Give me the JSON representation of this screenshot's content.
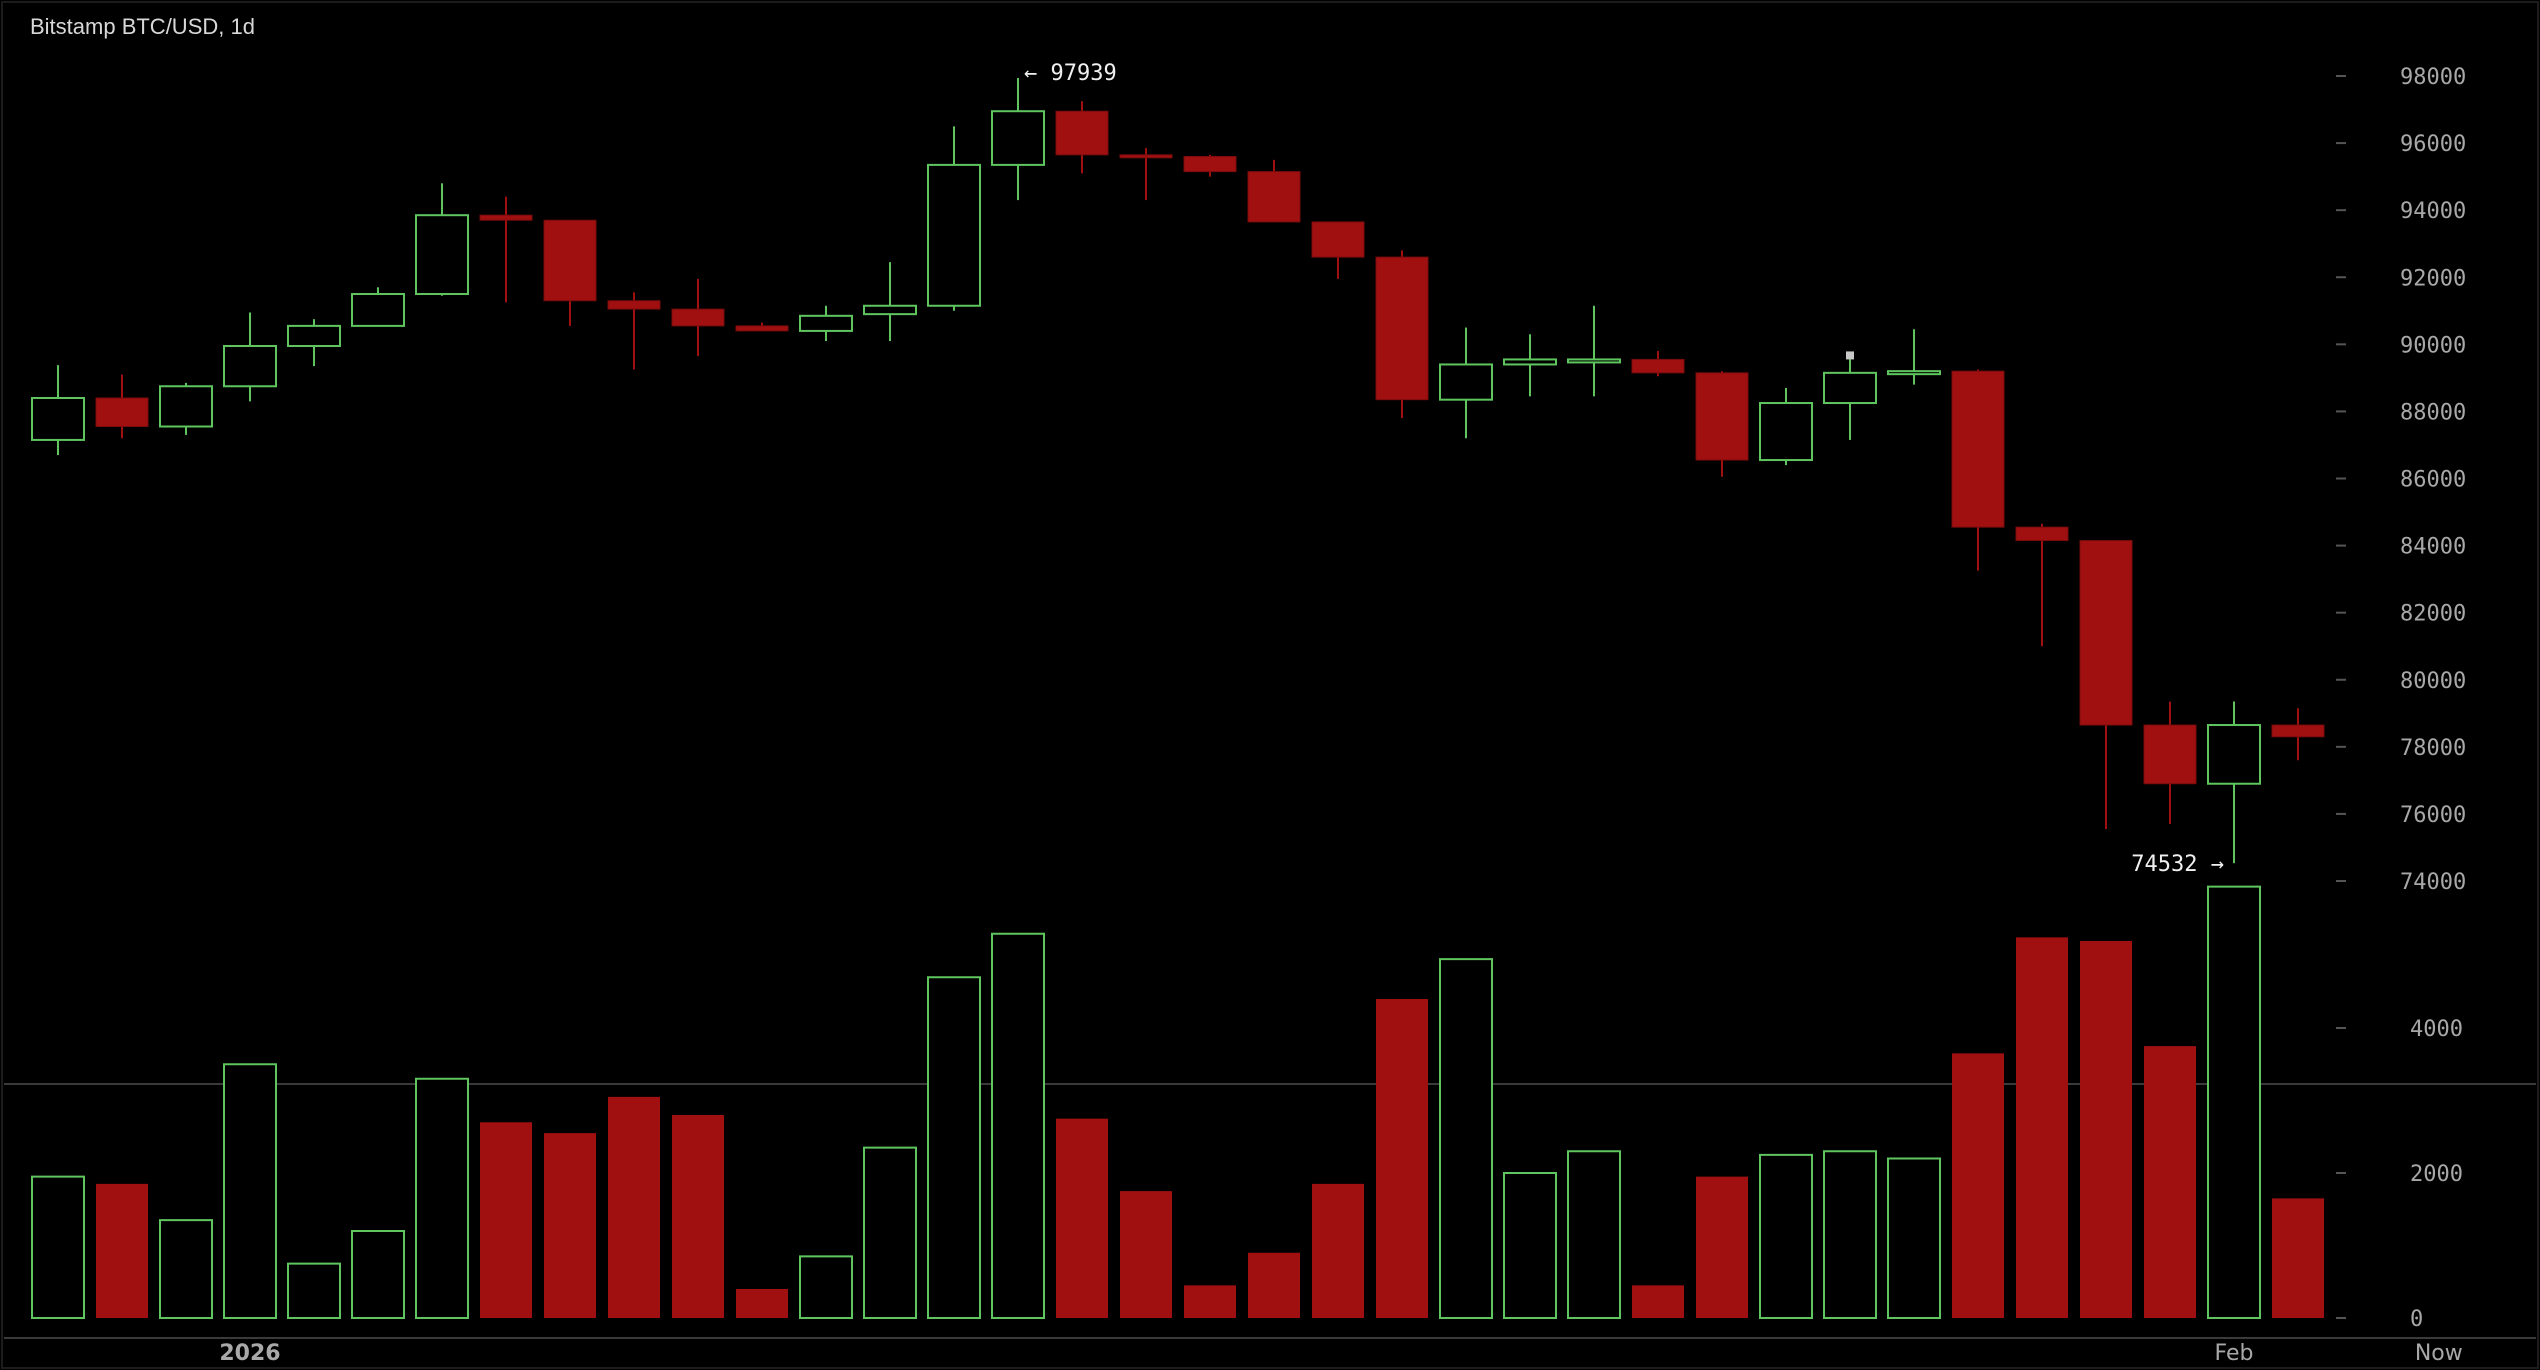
{
  "chart_data": {
    "type": "candlestick",
    "title": "Bitstamp BTC/USD, 1d",
    "colors": {
      "up": "#5fc65f",
      "down": "#a01010",
      "background": "#000000",
      "grid_tick": "#555555",
      "text": "#a8a8a8"
    },
    "price_axis": {
      "ticks": [
        "98000",
        "96000",
        "94000",
        "92000",
        "90000",
        "88000",
        "86000",
        "84000",
        "82000",
        "80000",
        "78000",
        "76000",
        "74000"
      ],
      "range": [
        73000,
        99000
      ]
    },
    "volume_axis": {
      "ticks": [
        "4000",
        "2000",
        "0"
      ],
      "range": [
        0,
        6000
      ]
    },
    "x_labels": [
      {
        "label": "2026",
        "index": 3
      },
      {
        "label": "Feb",
        "index": 34
      },
      {
        "label": "Now",
        "index": 37.2
      }
    ],
    "annotations": [
      {
        "text": "← 97939",
        "index": 15,
        "value": 97939,
        "side": "right"
      },
      {
        "text": "74532 →",
        "index": 34,
        "value": 74532,
        "side": "left"
      }
    ],
    "candles": [
      {
        "o": 87150,
        "h": 89380,
        "l": 86700,
        "c": 88400,
        "v": 1950
      },
      {
        "o": 88400,
        "h": 89100,
        "l": 87200,
        "c": 87550,
        "v": 1850
      },
      {
        "o": 87550,
        "h": 88850,
        "l": 87300,
        "c": 88750,
        "v": 1350
      },
      {
        "o": 88750,
        "h": 90950,
        "l": 88300,
        "c": 89950,
        "v": 3500
      },
      {
        "o": 89950,
        "h": 90750,
        "l": 89350,
        "c": 90550,
        "v": 750
      },
      {
        "o": 90550,
        "h": 91700,
        "l": 90550,
        "c": 91500,
        "v": 1200
      },
      {
        "o": 91500,
        "h": 94800,
        "l": 91450,
        "c": 93850,
        "v": 3300
      },
      {
        "o": 93850,
        "h": 94400,
        "l": 91250,
        "c": 93700,
        "v": 2700
      },
      {
        "o": 93700,
        "h": 93700,
        "l": 90550,
        "c": 91300,
        "v": 2550
      },
      {
        "o": 91300,
        "h": 91550,
        "l": 89250,
        "c": 91050,
        "v": 3050
      },
      {
        "o": 91050,
        "h": 91950,
        "l": 89650,
        "c": 90550,
        "v": 2800
      },
      {
        "o": 90550,
        "h": 90650,
        "l": 90400,
        "c": 90400,
        "v": 400
      },
      {
        "o": 90400,
        "h": 91150,
        "l": 90100,
        "c": 90850,
        "v": 850
      },
      {
        "o": 90900,
        "h": 92450,
        "l": 90100,
        "c": 91150,
        "v": 2350
      },
      {
        "o": 91150,
        "h": 96500,
        "l": 91000,
        "c": 95350,
        "v": 4700
      },
      {
        "o": 95350,
        "h": 97939,
        "l": 94300,
        "c": 96950,
        "v": 5300
      },
      {
        "o": 96950,
        "h": 97250,
        "l": 95100,
        "c": 95650,
        "v": 2750
      },
      {
        "o": 95650,
        "h": 95850,
        "l": 94300,
        "c": 95600,
        "v": 1750
      },
      {
        "o": 95600,
        "h": 95650,
        "l": 95000,
        "c": 95150,
        "v": 450
      },
      {
        "o": 95150,
        "h": 95500,
        "l": 93650,
        "c": 93650,
        "v": 900
      },
      {
        "o": 93650,
        "h": 93650,
        "l": 91950,
        "c": 92600,
        "v": 1850
      },
      {
        "o": 92600,
        "h": 92800,
        "l": 87800,
        "c": 88350,
        "v": 4400
      },
      {
        "o": 88350,
        "h": 90500,
        "l": 87200,
        "c": 89400,
        "v": 4950
      },
      {
        "o": 89400,
        "h": 90300,
        "l": 88450,
        "c": 89550,
        "v": 2000
      },
      {
        "o": 89500,
        "h": 91150,
        "l": 88450,
        "c": 89550,
        "v": 2300
      },
      {
        "o": 89550,
        "h": 89800,
        "l": 89050,
        "c": 89150,
        "v": 450
      },
      {
        "o": 89150,
        "h": 89200,
        "l": 86050,
        "c": 86550,
        "v": 1950
      },
      {
        "o": 86550,
        "h": 88700,
        "l": 86400,
        "c": 88250,
        "v": 2250
      },
      {
        "o": 88250,
        "h": 89550,
        "l": 87150,
        "c": 89150,
        "v": 2300
      },
      {
        "o": 89150,
        "h": 90450,
        "l": 88800,
        "c": 89200,
        "v": 2200
      },
      {
        "o": 89200,
        "h": 89250,
        "l": 83250,
        "c": 84550,
        "v": 3650
      },
      {
        "o": 84550,
        "h": 84650,
        "l": 81000,
        "c": 84150,
        "v": 5250
      },
      {
        "o": 84150,
        "h": 84150,
        "l": 75550,
        "c": 78650,
        "v": 5200
      },
      {
        "o": 78650,
        "h": 79350,
        "l": 75700,
        "c": 76900,
        "v": 3750
      },
      {
        "o": 76900,
        "h": 79350,
        "l": 74532,
        "c": 78650,
        "v": 5950
      },
      {
        "o": 78650,
        "h": 79150,
        "l": 77600,
        "c": 78300,
        "v": 1650
      }
    ]
  }
}
